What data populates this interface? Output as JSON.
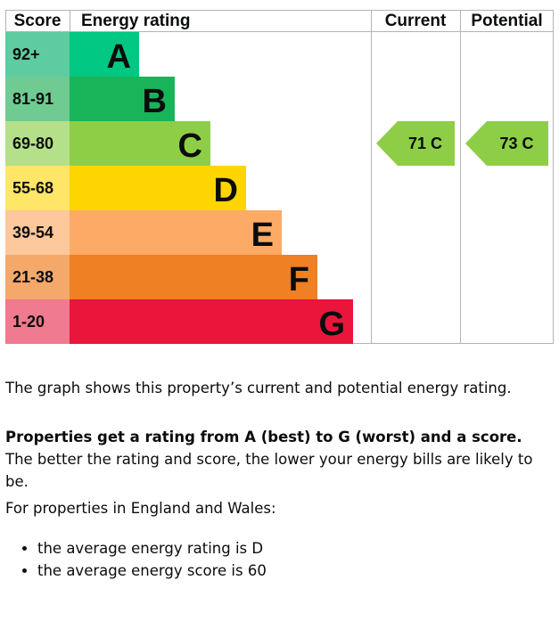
{
  "chart_data": {
    "type": "bar",
    "headers": {
      "score": "Score",
      "rating": "Energy rating",
      "current": "Current",
      "potential": "Potential"
    },
    "bands": [
      {
        "range": "92+",
        "letter": "A",
        "color": "#00c781",
        "score_bg": "#5ecca0"
      },
      {
        "range": "81-91",
        "letter": "B",
        "color": "#19b459",
        "score_bg": "#6fcb91"
      },
      {
        "range": "69-80",
        "letter": "C",
        "color": "#8dce46",
        "score_bg": "#b4e08a"
      },
      {
        "range": "55-68",
        "letter": "D",
        "color": "#ffd500",
        "score_bg": "#ffe568"
      },
      {
        "range": "39-54",
        "letter": "E",
        "color": "#fcaa65",
        "score_bg": "#fdc89b"
      },
      {
        "range": "21-38",
        "letter": "F",
        "color": "#ef8023",
        "score_bg": "#f4a96b"
      },
      {
        "range": "1-20",
        "letter": "G",
        "color": "#e9153b",
        "score_bg": "#f07a8f"
      }
    ],
    "current": {
      "score": 71,
      "band": "C",
      "label": "71  C",
      "color": "#8dce46"
    },
    "potential": {
      "score": 73,
      "band": "C",
      "label": "73  C",
      "color": "#8dce46"
    }
  },
  "text": {
    "p1": "The graph shows this property’s current and potential energy rating.",
    "p2_bold": "Properties get a rating from A (best) to G (worst) and a score.",
    "p2_rest": " The better the rating and score, the lower your energy bills are likely to be.",
    "p3": "For properties in England and Wales:",
    "bullets": [
      "the average energy rating is D",
      "the average energy score is 60"
    ]
  }
}
